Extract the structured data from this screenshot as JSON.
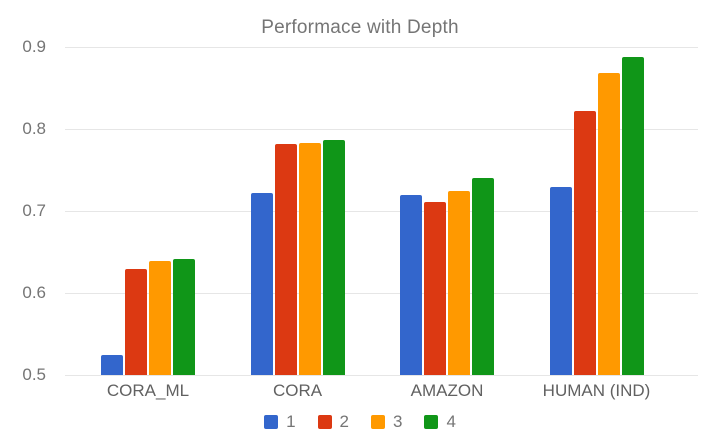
{
  "chart_data": {
    "type": "bar",
    "title": "Performace with Depth",
    "categories": [
      "CORA_ML",
      "CORA",
      "AMAZON",
      "HUMAN (IND)"
    ],
    "series": [
      {
        "name": "1",
        "color": "#3366CC",
        "values": [
          0.524,
          0.722,
          0.719,
          0.729
        ]
      },
      {
        "name": "2",
        "color": "#DC3912",
        "values": [
          0.629,
          0.782,
          0.711,
          0.822
        ]
      },
      {
        "name": "3",
        "color": "#FF9900",
        "values": [
          0.639,
          0.783,
          0.724,
          0.868
        ]
      },
      {
        "name": "4",
        "color": "#109618",
        "values": [
          0.641,
          0.787,
          0.74,
          0.888
        ]
      }
    ],
    "ylim": [
      0.5,
      0.9
    ],
    "yticks": [
      "0.5",
      "0.6",
      "0.7",
      "0.8",
      "0.9"
    ],
    "grid": true,
    "legend_position": "bottom",
    "xlabel": "",
    "ylabel": ""
  },
  "style": {
    "background": "#ffffff",
    "title_color": "#757575",
    "axis_tick_color": "#757575",
    "category_label_color": "#616161",
    "gridline_color": "#e6e6e6"
  }
}
